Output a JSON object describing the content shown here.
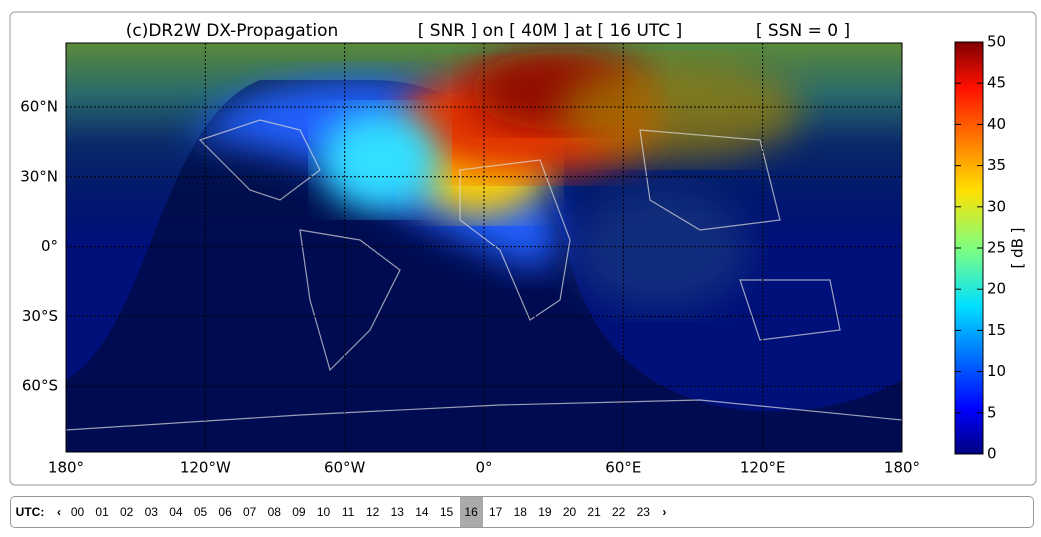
{
  "header": {
    "title": "(c)DR2W DX-Propagation",
    "mode": "[ SNR ] on [ 40M ] at [ 16 UTC ]",
    "ssn": "[ SSN = 0 ]"
  },
  "map": {
    "lat_labels": [
      "60°N",
      "30°N",
      "0°",
      "30°S",
      "60°S"
    ],
    "lon_labels": [
      "180°",
      "120°W",
      "60°W",
      "0°",
      "60°E",
      "120°E",
      "180°"
    ]
  },
  "colorbar": {
    "label": "[ dB ]",
    "lim": [
      0,
      50
    ],
    "ticks": [
      0,
      5,
      10,
      15,
      20,
      25,
      30,
      35,
      40,
      45,
      50
    ]
  },
  "selector": {
    "label": "UTC:",
    "prev": "‹",
    "next": "›",
    "hours": [
      "00",
      "01",
      "02",
      "03",
      "04",
      "05",
      "06",
      "07",
      "08",
      "09",
      "10",
      "11",
      "12",
      "13",
      "14",
      "15",
      "16",
      "17",
      "18",
      "19",
      "20",
      "21",
      "22",
      "23"
    ],
    "selected": "16"
  }
}
